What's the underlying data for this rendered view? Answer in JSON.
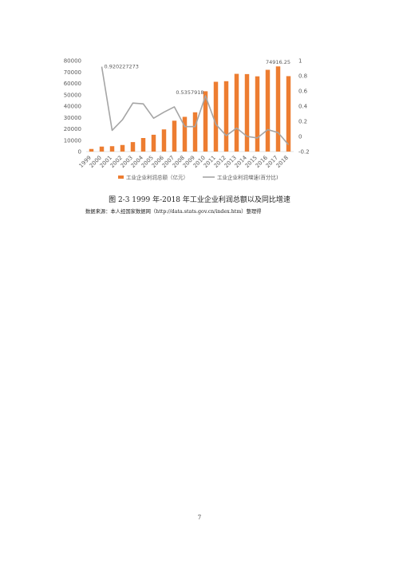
{
  "document": {
    "caption": "图 2-3 1999 年-2018 年工业企业利润总额以及同比增速",
    "source": "数据来源：本人经国家数据网（http://data.stats.gov.cn/index.htm）整理得",
    "page_number": "7"
  },
  "chart_data": {
    "type": "bar",
    "title": "",
    "categories": [
      "1999",
      "2000",
      "2001",
      "2002",
      "2003",
      "2004",
      "2005",
      "2006",
      "2007",
      "2008",
      "2009",
      "2010",
      "2011",
      "2012",
      "2013",
      "2014",
      "2015",
      "2016",
      "2017",
      "2018"
    ],
    "series": [
      {
        "name": "工业企业利润总额（亿元）",
        "type": "bar",
        "axis": "left",
        "color": "#ED7D31",
        "values": [
          2288,
          4393,
          4733,
          5784,
          8337,
          11929,
          14803,
          19504,
          27155,
          30562,
          34542,
          53050,
          61396,
          61910,
          68379,
          68155,
          66187,
          71921,
          74916.25,
          66351
        ]
      },
      {
        "name": "工业企业利润增速(百分比)",
        "type": "line",
        "axis": "right",
        "color": "#A5A5A5",
        "values": [
          null,
          0.920227273,
          0.08,
          0.22,
          0.44,
          0.43,
          0.24,
          0.32,
          0.39,
          0.13,
          0.13,
          0.535791,
          0.16,
          0.01,
          0.11,
          0.0,
          -0.02,
          0.09,
          0.05,
          -0.11
        ]
      }
    ],
    "y_left": {
      "min": 0,
      "max": 80000,
      "ticks": [
        "80000",
        "70000",
        "60000",
        "50000",
        "40000",
        "30000",
        "20000",
        "10000",
        "0"
      ]
    },
    "y_right": {
      "min": -0.2,
      "max": 1,
      "ticks": [
        "1",
        "0.8",
        "0.6",
        "0.4",
        "0.2",
        "0",
        "-0.2"
      ]
    },
    "data_labels": [
      {
        "text": "0.920227273",
        "series": 1,
        "index": 1
      },
      {
        "text": "0.5357918",
        "series": 1,
        "index": 11
      },
      {
        "text": "74916.25",
        "series": 0,
        "index": 18
      }
    ],
    "grid": false,
    "legend": "bottom"
  }
}
